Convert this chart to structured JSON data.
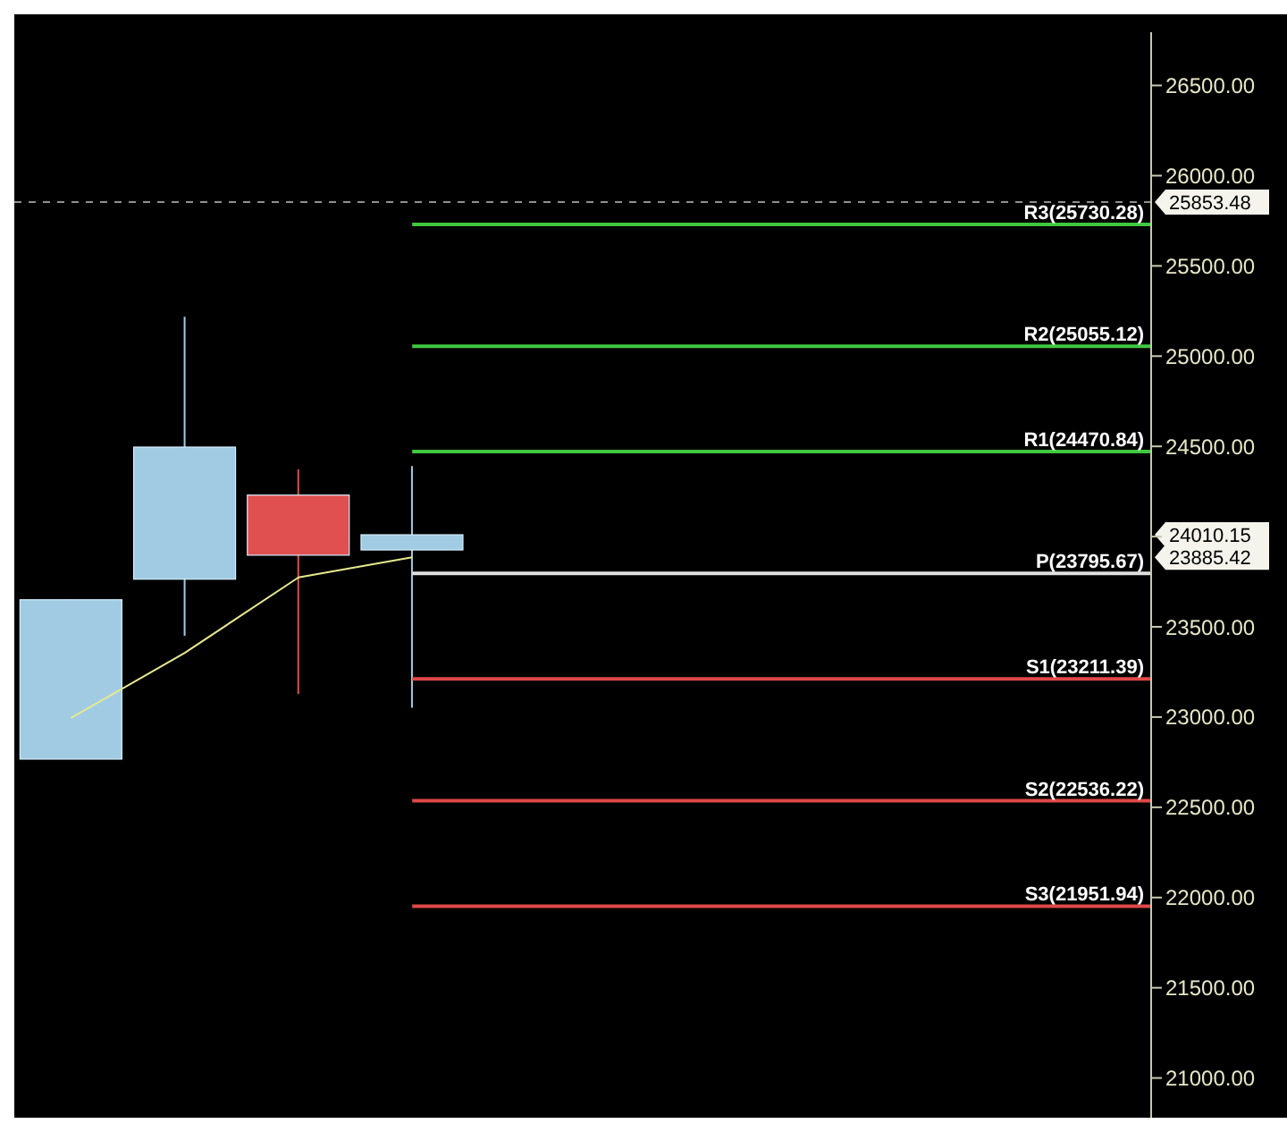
{
  "chart_data": {
    "type": "candlestick",
    "categories": [
      null,
      null,
      null,
      null,
      null,
      null,
      null,
      null,
      null,
      null
    ],
    "ohlc": [
      [
        22767,
        23650,
        22767,
        23650
      ],
      [
        23764,
        25218,
        23451,
        24496
      ],
      [
        24230,
        24372,
        23128,
        23897
      ],
      [
        23926,
        24391,
        23052,
        24010.15
      ],
      null,
      null,
      null,
      null,
      null,
      null
    ],
    "series": [
      {
        "type": "line",
        "color": "#e8e890",
        "values": [
          22995,
          23356,
          23774,
          23885.42,
          null,
          null,
          null,
          null,
          null,
          null
        ]
      }
    ],
    "colors": [
      "#a0cbe2",
      "#a0cbe2",
      "#e05050",
      "#a0cbe2",
      null,
      null,
      null,
      null,
      null,
      null
    ],
    "ylim": [
      20780,
      26795
    ],
    "yticks": [
      {
        "value": 21000,
        "label": "21000.00"
      },
      {
        "value": 21500,
        "label": "21500.00"
      },
      {
        "value": 22000,
        "label": "22000.00"
      },
      {
        "value": 22500,
        "label": "22500.00"
      },
      {
        "value": 23000,
        "label": "23000.00"
      },
      {
        "value": 23500,
        "label": "23500.00"
      },
      {
        "value": 24000,
        "label": null
      },
      {
        "value": 24500,
        "label": "24500.00"
      },
      {
        "value": 25000,
        "label": "25000.00"
      },
      {
        "value": 25500,
        "label": "25500.00"
      },
      {
        "value": 26000,
        "label": "26000.00"
      },
      {
        "value": 26500,
        "label": "26500.00"
      }
    ],
    "tick_labels": "y",
    "grid": false,
    "legend": false,
    "ref_lines": [
      {
        "axis": "y",
        "value": 25730.28,
        "label": "R3(25730.28)",
        "color": "#40c840"
      },
      {
        "axis": "y",
        "value": 25055.12,
        "label": "R2(25055.12)",
        "color": "#40c840"
      },
      {
        "axis": "y",
        "value": 24470.84,
        "label": "R1(24470.84)",
        "color": "#40c840"
      },
      {
        "axis": "y",
        "value": 23795.67,
        "label": "P(23795.67)",
        "color": "#e0e0e0"
      },
      {
        "axis": "y",
        "value": 23211.39,
        "label": "S1(23211.39)",
        "color": "#e04848"
      },
      {
        "axis": "y",
        "value": 22536.22,
        "label": "S2(22536.22)",
        "color": "#e04848"
      },
      {
        "axis": "y",
        "value": 21951.94,
        "label": "S3(21951.94)",
        "color": "#e04848"
      },
      {
        "axis": "y",
        "value": 25853.48,
        "label": "25853.48",
        "color": "#909090",
        "line_style": "dashed"
      }
    ],
    "annotations": [
      "24010.15",
      "23885.42"
    ]
  }
}
